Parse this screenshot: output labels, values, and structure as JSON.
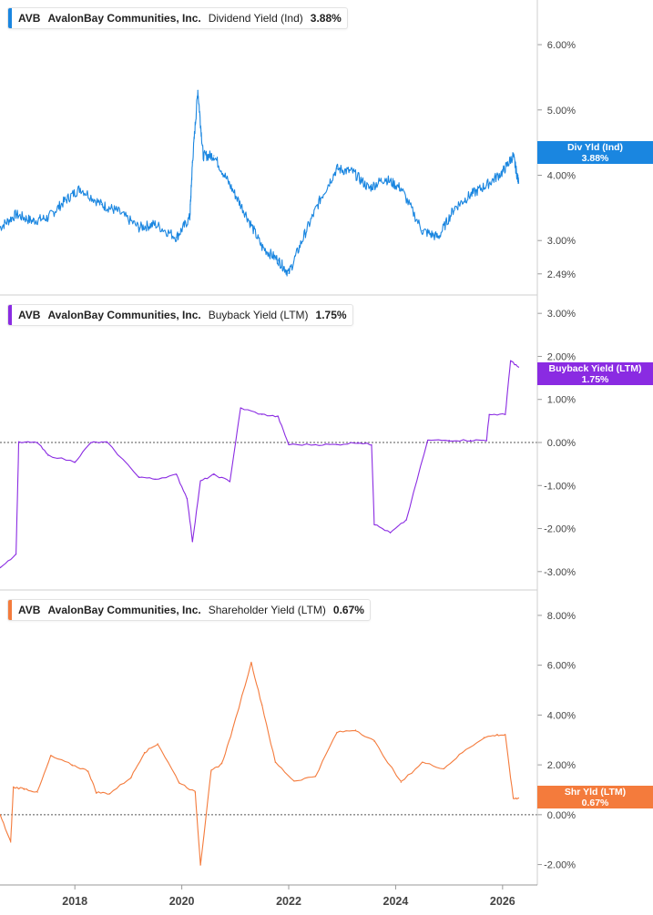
{
  "panels": [
    {
      "ticker": "AVB",
      "company": "AvalonBay Communities, Inc.",
      "metric": "Dividend Yield (Ind)",
      "value": "3.88%",
      "color": "#1a86e0",
      "badge_line1": "Div Yld (Ind)",
      "badge_line2": "3.88%"
    },
    {
      "ticker": "AVB",
      "company": "AvalonBay Communities, Inc.",
      "metric": "Buyback Yield (LTM)",
      "value": "1.75%",
      "color": "#8a2be2",
      "badge_line1": "Buyback Yield (LTM)",
      "badge_line2": "1.75%"
    },
    {
      "ticker": "AVB",
      "company": "AvalonBay Communities, Inc.",
      "metric": "Shareholder Yield (LTM)",
      "value": "0.67%",
      "color": "#f47b3c",
      "badge_line1": "Shr Yld (LTM)",
      "badge_line2": "0.67%"
    }
  ],
  "chart_data": [
    {
      "type": "line",
      "name": "Dividend Yield (Ind)",
      "ylim": [
        2.25,
        6.6
      ],
      "y_ticks": [
        "6.00%",
        "5.00%",
        "4.00%",
        "3.00%",
        "2.49%"
      ],
      "y_tick_values": [
        6.0,
        5.0,
        4.0,
        3.0,
        2.49
      ],
      "x": [
        2016.6,
        2016.9,
        2017.2,
        2017.5,
        2017.8,
        2018.1,
        2018.5,
        2018.8,
        2019.2,
        2019.5,
        2019.9,
        2020.15,
        2020.2,
        2020.3,
        2020.4,
        2020.6,
        2020.9,
        2021.2,
        2021.5,
        2021.8,
        2022.0,
        2022.3,
        2022.6,
        2022.9,
        2023.2,
        2023.5,
        2023.8,
        2024.1,
        2024.5,
        2024.8,
        2025.1,
        2025.4,
        2025.7,
        2026.0,
        2026.2,
        2026.3
      ],
      "y": [
        3.2,
        3.4,
        3.3,
        3.35,
        3.6,
        3.8,
        3.55,
        3.45,
        3.2,
        3.25,
        3.05,
        3.35,
        4.2,
        5.3,
        4.3,
        4.3,
        3.85,
        3.4,
        2.9,
        2.7,
        2.5,
        3.1,
        3.65,
        4.1,
        4.05,
        3.8,
        3.95,
        3.8,
        3.15,
        3.05,
        3.5,
        3.7,
        3.85,
        4.05,
        4.3,
        3.88
      ]
    },
    {
      "type": "line",
      "name": "Buyback Yield (LTM)",
      "ylim": [
        -3.3,
        3.3
      ],
      "y_ticks": [
        "3.00%",
        "2.00%",
        "1.00%",
        "0.00%",
        "-1.00%",
        "-2.00%",
        "-3.00%"
      ],
      "y_tick_values": [
        3,
        2,
        1,
        0,
        -1,
        -2,
        -3
      ],
      "zero_line": true,
      "x": [
        2016.6,
        2016.9,
        2016.95,
        2017.3,
        2017.5,
        2018.0,
        2018.3,
        2018.6,
        2019.2,
        2019.5,
        2019.9,
        2020.1,
        2020.2,
        2020.35,
        2020.6,
        2020.9,
        2021.1,
        2021.5,
        2021.8,
        2022.0,
        2022.5,
        2022.9,
        2023.3,
        2023.55,
        2023.6,
        2023.9,
        2024.2,
        2024.6,
        2025.0,
        2025.4,
        2025.7,
        2025.75,
        2026.05,
        2026.15,
        2026.3
      ],
      "y": [
        -2.9,
        -2.6,
        0.0,
        0.0,
        -0.3,
        -0.45,
        0.0,
        0.0,
        -0.8,
        -0.85,
        -0.75,
        -1.3,
        -2.3,
        -0.9,
        -0.75,
        -0.9,
        0.8,
        0.65,
        0.6,
        -0.05,
        -0.05,
        -0.05,
        0.0,
        -0.05,
        -1.9,
        -2.1,
        -1.8,
        0.05,
        0.05,
        0.05,
        0.05,
        0.65,
        0.65,
        1.9,
        1.75
      ]
    },
    {
      "type": "line",
      "name": "Shareholder Yield (LTM)",
      "ylim": [
        -2.6,
        8.8
      ],
      "y_ticks": [
        "8.00%",
        "6.00%",
        "4.00%",
        "2.00%",
        "0.00%",
        "-2.00%"
      ],
      "y_tick_values": [
        8,
        6,
        4,
        2,
        0,
        -2
      ],
      "zero_line": true,
      "x": [
        2016.6,
        2016.8,
        2016.85,
        2017.05,
        2017.3,
        2017.55,
        2017.95,
        2018.25,
        2018.4,
        2018.65,
        2019.05,
        2019.3,
        2019.55,
        2019.95,
        2020.25,
        2020.35,
        2020.55,
        2020.75,
        2020.95,
        2021.3,
        2021.5,
        2021.75,
        2022.1,
        2022.5,
        2022.9,
        2023.25,
        2023.6,
        2024.1,
        2024.5,
        2024.9,
        2025.25,
        2025.65,
        2025.9,
        2026.05,
        2026.2,
        2026.3
      ],
      "y": [
        0.0,
        -1.1,
        1.1,
        1.05,
        0.9,
        2.35,
        2.0,
        1.75,
        0.9,
        0.85,
        1.5,
        2.5,
        2.85,
        1.3,
        0.9,
        -2.0,
        1.75,
        2.05,
        3.4,
        6.1,
        4.4,
        2.1,
        1.35,
        1.55,
        3.3,
        3.4,
        2.95,
        1.3,
        2.1,
        1.85,
        2.5,
        3.1,
        3.2,
        3.2,
        0.65,
        0.67
      ]
    }
  ],
  "x_axis": {
    "labels": [
      "2018",
      "2020",
      "2022",
      "2024",
      "2026"
    ],
    "label_values": [
      2018,
      2020,
      2022,
      2024,
      2026
    ],
    "range": [
      2016.6,
      2026.65
    ]
  }
}
